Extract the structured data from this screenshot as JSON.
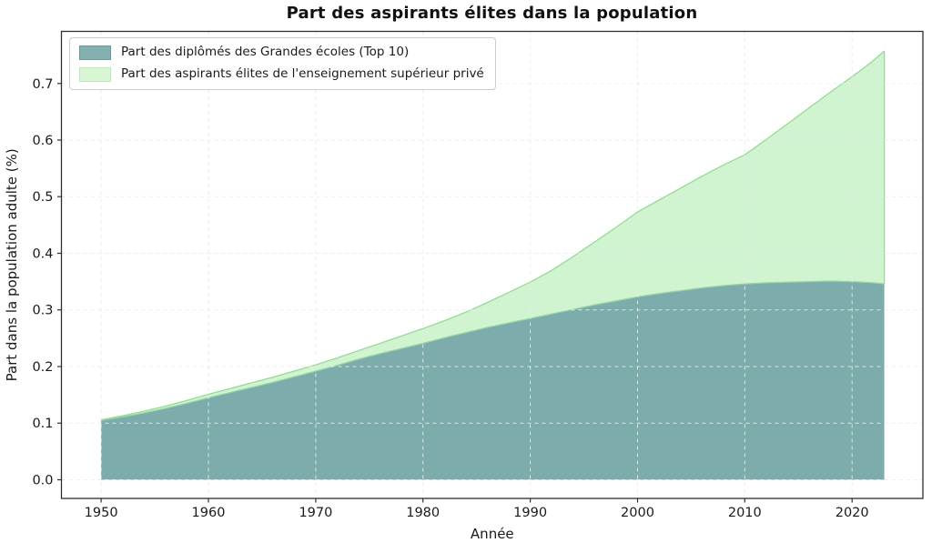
{
  "title": "Part des aspirants élites dans la population",
  "legend": {
    "items": [
      {
        "label": "Part des diplômés des Grandes écoles (Top 10)",
        "color": "#85B0B0",
        "border": "#6A9797"
      },
      {
        "label": "Part des aspirants élites de l'enseignement supérieur privé",
        "color": "#D9F6D4",
        "border": "#BCE9BC"
      }
    ]
  },
  "chart_data": {
    "type": "area",
    "stacked": true,
    "title": "Part des aspirants élites dans la population",
    "xlabel": "Année",
    "ylabel": "Part dans la population adulte (%)",
    "x": [
      1950,
      1952,
      1954,
      1956,
      1958,
      1960,
      1962,
      1964,
      1966,
      1968,
      1970,
      1972,
      1974,
      1976,
      1978,
      1980,
      1982,
      1984,
      1986,
      1988,
      1990,
      1992,
      1994,
      1996,
      1998,
      2000,
      2002,
      2004,
      2006,
      2008,
      2010,
      2012,
      2014,
      2016,
      2018,
      2020,
      2021,
      2022,
      2023
    ],
    "series": [
      {
        "name": "Part des diplômés des Grandes écoles (Top 10)",
        "color": "#7CACAC",
        "values": [
          0.105,
          0.111,
          0.118,
          0.126,
          0.135,
          0.145,
          0.154,
          0.163,
          0.172,
          0.182,
          0.192,
          0.202,
          0.213,
          0.223,
          0.232,
          0.241,
          0.251,
          0.26,
          0.269,
          0.277,
          0.285,
          0.293,
          0.301,
          0.309,
          0.316,
          0.323,
          0.329,
          0.334,
          0.339,
          0.343,
          0.346,
          0.348,
          0.349,
          0.35,
          0.351,
          0.35,
          0.349,
          0.348,
          0.346
        ]
      },
      {
        "name": "Part des aspirants élites de l'enseignement supérieur privé",
        "color": "#D0F4CF",
        "edge": "#9BD69B",
        "values": [
          0.001,
          0.002,
          0.003,
          0.004,
          0.005,
          0.006,
          0.007,
          0.008,
          0.009,
          0.01,
          0.011,
          0.013,
          0.015,
          0.018,
          0.022,
          0.026,
          0.03,
          0.036,
          0.044,
          0.054,
          0.064,
          0.077,
          0.093,
          0.111,
          0.13,
          0.15,
          0.165,
          0.181,
          0.197,
          0.213,
          0.228,
          0.253,
          0.28,
          0.307,
          0.334,
          0.362,
          0.377,
          0.393,
          0.411
        ]
      }
    ],
    "xlim": [
      1946.3,
      2026.6
    ],
    "ylim": [
      -0.033,
      0.792
    ],
    "xticks": {
      "values": [
        1950,
        1960,
        1970,
        1980,
        1990,
        2000,
        2010,
        2020
      ],
      "labels": [
        "1950",
        "1960",
        "1970",
        "1980",
        "1990",
        "2000",
        "2010",
        "2020"
      ]
    },
    "yticks": {
      "values": [
        0.0,
        0.1,
        0.2,
        0.3,
        0.4,
        0.5,
        0.6,
        0.7
      ],
      "labels": [
        "0.0",
        "0.1",
        "0.2",
        "0.3",
        "0.4",
        "0.5",
        "0.6",
        "0.7"
      ]
    },
    "grid": "dashed",
    "legend_position": "upper-left",
    "colors": {
      "grid": "#E6EDEB",
      "spine": "#2E2E2E",
      "tick_label": "#1A1A1A",
      "title": "#111111"
    }
  }
}
